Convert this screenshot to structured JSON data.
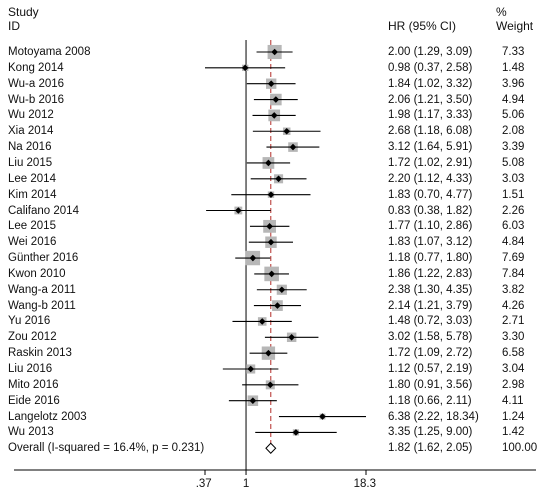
{
  "header": {
    "study_line1": "Study",
    "study_line2": "ID",
    "hr": "HR (95% CI)",
    "weight_line1": "%",
    "weight_line2": "Weight"
  },
  "chart_data": {
    "type": "forest",
    "x_scale": "log",
    "xlim": [
      0.37,
      18.3
    ],
    "null_line": 1,
    "overall_line": 1.82,
    "xticks": [
      ".37",
      "1",
      "18.3"
    ],
    "studies": [
      {
        "id": "Motoyama 2008",
        "hr": 2.0,
        "lo": 1.29,
        "hi": 3.09,
        "weight": 7.33,
        "ci_text": "2.00 (1.29, 3.09)",
        "weight_text": "7.33"
      },
      {
        "id": "Kong 2014",
        "hr": 0.98,
        "lo": 0.37,
        "hi": 2.58,
        "weight": 1.48,
        "ci_text": "0.98 (0.37, 2.58)",
        "weight_text": "1.48"
      },
      {
        "id": "Wu-a 2016",
        "hr": 1.84,
        "lo": 1.02,
        "hi": 3.32,
        "weight": 3.96,
        "ci_text": "1.84 (1.02, 3.32)",
        "weight_text": "3.96"
      },
      {
        "id": "Wu-b 2016",
        "hr": 2.06,
        "lo": 1.21,
        "hi": 3.5,
        "weight": 4.94,
        "ci_text": "2.06 (1.21, 3.50)",
        "weight_text": "4.94"
      },
      {
        "id": "Wu 2012",
        "hr": 1.98,
        "lo": 1.17,
        "hi": 3.33,
        "weight": 5.06,
        "ci_text": "1.98 (1.17, 3.33)",
        "weight_text": "5.06"
      },
      {
        "id": "Xia 2014",
        "hr": 2.68,
        "lo": 1.18,
        "hi": 6.08,
        "weight": 2.08,
        "ci_text": "2.68 (1.18, 6.08)",
        "weight_text": "2.08"
      },
      {
        "id": "Na 2016",
        "hr": 3.12,
        "lo": 1.64,
        "hi": 5.91,
        "weight": 3.39,
        "ci_text": "3.12 (1.64, 5.91)",
        "weight_text": "3.39"
      },
      {
        "id": "Liu 2015",
        "hr": 1.72,
        "lo": 1.02,
        "hi": 2.91,
        "weight": 5.08,
        "ci_text": "1.72 (1.02, 2.91)",
        "weight_text": "5.08"
      },
      {
        "id": "Lee 2014",
        "hr": 2.2,
        "lo": 1.12,
        "hi": 4.33,
        "weight": 3.03,
        "ci_text": "2.20 (1.12, 4.33)",
        "weight_text": "3.03"
      },
      {
        "id": "Kim 2014",
        "hr": 1.83,
        "lo": 0.7,
        "hi": 4.77,
        "weight": 1.51,
        "ci_text": "1.83 (0.70, 4.77)",
        "weight_text": "1.51"
      },
      {
        "id": "Califano 2014",
        "hr": 0.83,
        "lo": 0.38,
        "hi": 1.82,
        "weight": 2.26,
        "ci_text": "0.83 (0.38, 1.82)",
        "weight_text": "2.26"
      },
      {
        "id": "Lee 2015",
        "hr": 1.77,
        "lo": 1.1,
        "hi": 2.86,
        "weight": 6.03,
        "ci_text": "1.77 (1.10, 2.86)",
        "weight_text": "6.03"
      },
      {
        "id": "Wei 2016",
        "hr": 1.83,
        "lo": 1.07,
        "hi": 3.12,
        "weight": 4.84,
        "ci_text": "1.83 (1.07, 3.12)",
        "weight_text": "4.84"
      },
      {
        "id": "Günther 2016",
        "hr": 1.18,
        "lo": 0.77,
        "hi": 1.8,
        "weight": 7.69,
        "ci_text": "1.18 (0.77, 1.80)",
        "weight_text": "7.69"
      },
      {
        "id": "Kwon 2010",
        "hr": 1.86,
        "lo": 1.22,
        "hi": 2.83,
        "weight": 7.84,
        "ci_text": "1.86 (1.22, 2.83)",
        "weight_text": "7.84"
      },
      {
        "id": "Wang-a 2011",
        "hr": 2.38,
        "lo": 1.3,
        "hi": 4.35,
        "weight": 3.82,
        "ci_text": "2.38 (1.30, 4.35)",
        "weight_text": "3.82"
      },
      {
        "id": "Wang-b 2011",
        "hr": 2.14,
        "lo": 1.21,
        "hi": 3.79,
        "weight": 4.26,
        "ci_text": "2.14 (1.21, 3.79)",
        "weight_text": "4.26"
      },
      {
        "id": "Yu 2016",
        "hr": 1.48,
        "lo": 0.72,
        "hi": 3.03,
        "weight": 2.71,
        "ci_text": "1.48 (0.72, 3.03)",
        "weight_text": "2.71"
      },
      {
        "id": "Zou 2012",
        "hr": 3.02,
        "lo": 1.58,
        "hi": 5.78,
        "weight": 3.3,
        "ci_text": "3.02 (1.58, 5.78)",
        "weight_text": "3.30"
      },
      {
        "id": "Raskin 2013",
        "hr": 1.72,
        "lo": 1.09,
        "hi": 2.72,
        "weight": 6.58,
        "ci_text": "1.72 (1.09, 2.72)",
        "weight_text": "6.58"
      },
      {
        "id": "Liu 2016",
        "hr": 1.12,
        "lo": 0.57,
        "hi": 2.19,
        "weight": 3.04,
        "ci_text": "1.12 (0.57, 2.19)",
        "weight_text": "3.04"
      },
      {
        "id": "Mito 2016",
        "hr": 1.8,
        "lo": 0.91,
        "hi": 3.56,
        "weight": 2.98,
        "ci_text": "1.80 (0.91, 3.56)",
        "weight_text": "2.98"
      },
      {
        "id": "Eide 2016",
        "hr": 1.18,
        "lo": 0.66,
        "hi": 2.11,
        "weight": 4.11,
        "ci_text": "1.18 (0.66, 2.11)",
        "weight_text": "4.11"
      },
      {
        "id": "Langelotz 2003",
        "hr": 6.38,
        "lo": 2.22,
        "hi": 18.34,
        "weight": 1.24,
        "ci_text": "6.38 (2.22, 18.34)",
        "weight_text": "1.24"
      },
      {
        "id": "Wu 2013",
        "hr": 3.35,
        "lo": 1.25,
        "hi": 9.0,
        "weight": 1.42,
        "ci_text": "3.35 (1.25, 9.00)",
        "weight_text": "1.42"
      }
    ],
    "overall": {
      "label": "Overall  (I-squared = 16.4%, p = 0.231)",
      "hr": 1.82,
      "lo": 1.62,
      "hi": 2.05,
      "weight": 100.0,
      "ci_text": "1.82 (1.62, 2.05)",
      "weight_text": "100.00"
    },
    "colors": {
      "box": "#b7b7b7",
      "line": "#000000",
      "overall_line": "#c0504d"
    }
  }
}
